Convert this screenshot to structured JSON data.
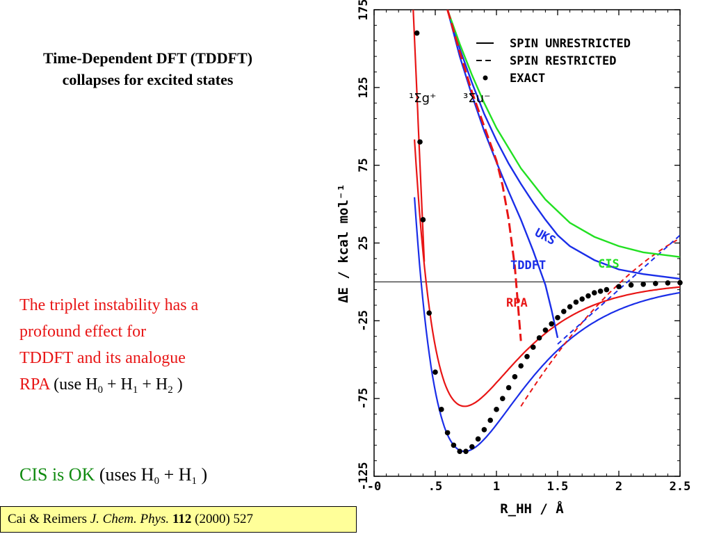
{
  "slide": {
    "title": "Time-Dependent DFT (TDDFT) collapses for excited states",
    "body": {
      "line1": "The triplet instability has a",
      "line2": "profound effect for",
      "line3": "TDDFT and its analogue",
      "rpa": "RPA",
      "use_pre": " (use H",
      "sub0": "0",
      "plus1": " + H",
      "sub1": "1",
      "plus2": " + H",
      "sub2": "2",
      "close": " )"
    },
    "cis_line": {
      "cis_ok": "CIS is OK",
      "uses_pre": " (uses H",
      "sub0": "0",
      "plus1": " + H",
      "sub1": "1",
      "close": " )"
    },
    "citation": {
      "authors": "Cai & Reimers ",
      "journal": "J. Chem. Phys.",
      "volume": "112",
      "rest": " (2000) 527"
    }
  },
  "colors": {
    "red": "#e81515",
    "green": "#0f8a0f",
    "blue": "#1a2ee8",
    "lime": "#22e022",
    "citation_bg": "#ffff99"
  },
  "chart_data": {
    "type": "line",
    "xlabel": "R_HH / Å",
    "ylabel": "ΔE / kcal mol⁻¹",
    "xlim": [
      0,
      2.5
    ],
    "ylim": [
      -125,
      175
    ],
    "x_ticks": [
      "-0",
      ".5",
      "1",
      "1.5",
      "2",
      "2.5"
    ],
    "y_ticks": [
      "-125",
      "-75",
      "-25",
      "25",
      "75",
      "125",
      "175"
    ],
    "legend": {
      "placement": "top-right",
      "entries": [
        "SPIN UNRESTRICTED",
        "SPIN RESTRICTED",
        "EXACT"
      ]
    },
    "state_labels": [
      "¹Σg⁺",
      "³Σu⁻"
    ],
    "curve_labels": [
      "UKS",
      "TDDFT",
      "CIS",
      "RPA"
    ],
    "series": [
      {
        "name": "EXACT",
        "style": "dots",
        "x": [
          0.35,
          0.375,
          0.4,
          0.45,
          0.5,
          0.55,
          0.6,
          0.65,
          0.7,
          0.75,
          0.8,
          0.85,
          0.9,
          0.95,
          1.0,
          1.05,
          1.1,
          1.15,
          1.2,
          1.25,
          1.3,
          1.35,
          1.4,
          1.45,
          1.5,
          1.55,
          1.6,
          1.65,
          1.7,
          1.75,
          1.8,
          1.85,
          1.9,
          2.0,
          2.1,
          2.2,
          2.3,
          2.4,
          2.5
        ],
        "y": [
          160,
          90,
          40,
          -20,
          -58,
          -82,
          -97,
          -105,
          -109,
          -109,
          -106,
          -101,
          -95,
          -89,
          -82,
          -75,
          -68,
          -61,
          -54,
          -48,
          -42,
          -36,
          -31,
          -27,
          -23,
          -19,
          -16,
          -13,
          -11,
          -9,
          -7,
          -6,
          -5,
          -3,
          -2,
          -1.5,
          -1,
          -0.7,
          -0.5
        ]
      },
      {
        "name": "UKS",
        "x": [
          0.6,
          0.7,
          0.8,
          0.9,
          1.0,
          1.1,
          1.2,
          1.3,
          1.4,
          1.5,
          1.6,
          1.8,
          2.0,
          2.2,
          2.5
        ],
        "y": [
          175,
          150,
          128,
          108,
          91,
          76,
          63,
          51,
          40,
          30,
          23,
          14,
          8,
          5,
          2
        ]
      },
      {
        "name": "TDDFT",
        "x": [
          0.6,
          0.7,
          0.8,
          0.9,
          1.0,
          1.1,
          1.2,
          1.3,
          1.4,
          1.45,
          1.5
        ],
        "y": [
          175,
          145,
          120,
          97,
          77,
          58,
          40,
          20,
          -2,
          -18,
          -36
        ]
      },
      {
        "name": "CIS",
        "x": [
          0.6,
          0.7,
          0.8,
          0.9,
          1.0,
          1.2,
          1.4,
          1.6,
          1.8,
          2.0,
          2.2,
          2.5
        ],
        "y": [
          175,
          153,
          133,
          115,
          99,
          73,
          53,
          38,
          29,
          23,
          19,
          16
        ]
      },
      {
        "name": "RPA",
        "x": [
          0.6,
          0.7,
          0.8,
          0.9,
          1.0,
          1.05,
          1.1,
          1.15,
          1.2
        ],
        "y": [
          175,
          148,
          122,
          100,
          78,
          62,
          40,
          10,
          -38
        ]
      }
    ]
  }
}
